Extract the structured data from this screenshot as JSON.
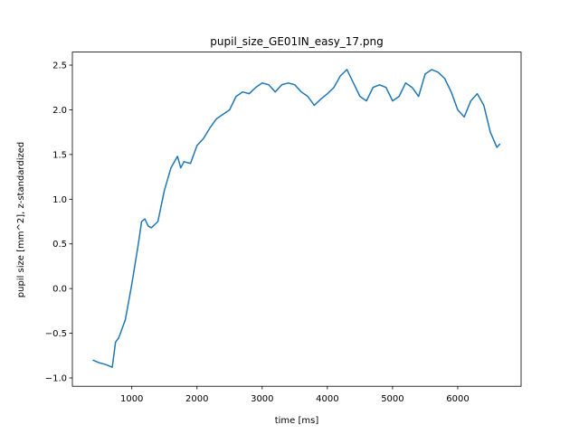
{
  "chart_data": {
    "type": "line",
    "title": "pupil_size_GE01IN_easy_17.png",
    "x_label": "time [ms]",
    "y_label": "pupil size [mm^2], z-standardized",
    "x": [
      400,
      500,
      600,
      700,
      750,
      800,
      900,
      1000,
      1100,
      1150,
      1200,
      1250,
      1300,
      1400,
      1500,
      1600,
      1700,
      1750,
      1800,
      1900,
      2000,
      2100,
      2200,
      2300,
      2400,
      2500,
      2600,
      2700,
      2800,
      2900,
      3000,
      3100,
      3200,
      3300,
      3400,
      3500,
      3600,
      3700,
      3800,
      3900,
      4000,
      4100,
      4200,
      4300,
      4400,
      4500,
      4600,
      4700,
      4800,
      4900,
      5000,
      5100,
      5200,
      5300,
      5400,
      5500,
      5600,
      5700,
      5800,
      5900,
      6000,
      6100,
      6200,
      6300,
      6400,
      6500,
      6600,
      6650
    ],
    "series": [
      {
        "name": "pupil size",
        "color": "#1f77b4",
        "values": [
          -0.8,
          -0.83,
          -0.85,
          -0.88,
          -0.6,
          -0.55,
          -0.35,
          0.05,
          0.5,
          0.75,
          0.78,
          0.7,
          0.68,
          0.75,
          1.1,
          1.35,
          1.48,
          1.35,
          1.42,
          1.4,
          1.6,
          1.68,
          1.8,
          1.9,
          1.95,
          2.0,
          2.15,
          2.2,
          2.18,
          2.25,
          2.3,
          2.28,
          2.2,
          2.28,
          2.3,
          2.28,
          2.2,
          2.15,
          2.05,
          2.12,
          2.18,
          2.25,
          2.38,
          2.45,
          2.3,
          2.15,
          2.1,
          2.25,
          2.28,
          2.25,
          2.1,
          2.15,
          2.3,
          2.25,
          2.15,
          2.4,
          2.45,
          2.42,
          2.35,
          2.2,
          2.0,
          1.92,
          2.1,
          2.18,
          2.05,
          1.75,
          1.58,
          1.62
        ]
      }
    ],
    "xlim": [
      88,
      6972
    ],
    "ylim": [
      -1.093,
      2.646
    ],
    "xticks": [
      1000,
      2000,
      3000,
      4000,
      5000,
      6000
    ],
    "yticks": [
      {
        "value": -1,
        "label": "−1.0"
      },
      {
        "value": -0.5,
        "label": "−0.5"
      },
      {
        "value": 0,
        "label": "0.0"
      },
      0.5,
      {
        "value": 1,
        "label": "1.0"
      },
      1.5,
      {
        "value": 2,
        "label": "2.0"
      },
      2.5
    ],
    "grid": false
  }
}
